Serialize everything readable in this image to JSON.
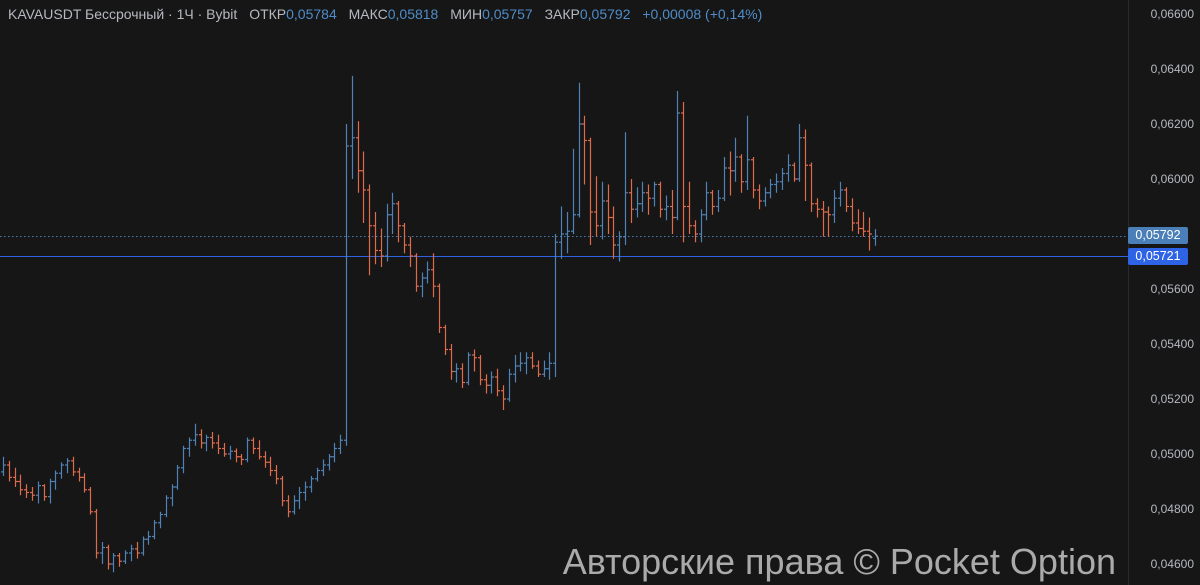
{
  "header": {
    "symbol": "KAVAUSDT Бессрочный · 1Ч · Bybit",
    "open_label": "ОТКР",
    "open": "0,05784",
    "high_label": "МАКС",
    "high": "0,05818",
    "low_label": "МИН",
    "low": "0,05757",
    "close_label": "ЗАКР",
    "close": "0,05792",
    "change": "+0,00008 (+0,14%)"
  },
  "price_tags": {
    "last_price": "0,05792",
    "line_price": "0,05721"
  },
  "watermark": "Авторские права © Pocket Option",
  "colors": {
    "up": "#4f82b5",
    "down": "#e06a4c",
    "background": "#161616",
    "line": "#2f63e6",
    "last_tag": "#4a7fb7"
  },
  "chart_data": {
    "type": "ohlc",
    "title": "KAVAUSDT Бессрочный · 1Ч · Bybit",
    "ylim": [
      0.0456,
      0.0664
    ],
    "y_ticks": [
      "0,06600",
      "0,06400",
      "0,06200",
      "0,06000",
      "0,05600",
      "0,05400",
      "0,05200",
      "0,05000",
      "0,04800",
      "0,04600"
    ],
    "y_tick_values": [
      0.066,
      0.064,
      0.062,
      0.06,
      0.056,
      0.054,
      0.052,
      0.05,
      0.048,
      0.046
    ],
    "horizontal_lines": [
      {
        "price": 0.05792,
        "style": "dotted"
      },
      {
        "price": 0.05721,
        "style": "solid"
      }
    ],
    "bars_ohlc": [
      [
        0.04935,
        0.0499,
        0.0492,
        0.0496
      ],
      [
        0.0496,
        0.04975,
        0.049,
        0.04915
      ],
      [
        0.04915,
        0.0495,
        0.0488,
        0.049
      ],
      [
        0.049,
        0.04925,
        0.0485,
        0.0487
      ],
      [
        0.0487,
        0.0489,
        0.0484,
        0.0486
      ],
      [
        0.0486,
        0.0488,
        0.0483,
        0.0485
      ],
      [
        0.0485,
        0.049,
        0.0482,
        0.04885
      ],
      [
        0.04885,
        0.0489,
        0.0483,
        0.04845
      ],
      [
        0.04845,
        0.0491,
        0.0482,
        0.049
      ],
      [
        0.049,
        0.0494,
        0.0487,
        0.0493
      ],
      [
        0.0493,
        0.0497,
        0.0491,
        0.0496
      ],
      [
        0.0496,
        0.04985,
        0.0493,
        0.04975
      ],
      [
        0.04975,
        0.0499,
        0.0492,
        0.04935
      ],
      [
        0.04935,
        0.0495,
        0.049,
        0.04915
      ],
      [
        0.04915,
        0.0493,
        0.0486,
        0.0487
      ],
      [
        0.0487,
        0.0488,
        0.0478,
        0.0479
      ],
      [
        0.0479,
        0.048,
        0.0462,
        0.0464
      ],
      [
        0.0464,
        0.0468,
        0.046,
        0.0466
      ],
      [
        0.0466,
        0.0467,
        0.0458,
        0.046
      ],
      [
        0.046,
        0.0464,
        0.0457,
        0.0463
      ],
      [
        0.0463,
        0.0464,
        0.0459,
        0.0461
      ],
      [
        0.0461,
        0.0465,
        0.046,
        0.0464
      ],
      [
        0.0464,
        0.0467,
        0.0461,
        0.04655
      ],
      [
        0.04655,
        0.0468,
        0.0462,
        0.0464
      ],
      [
        0.0464,
        0.047,
        0.0463,
        0.0469
      ],
      [
        0.0469,
        0.0472,
        0.0467,
        0.047
      ],
      [
        0.047,
        0.0476,
        0.0469,
        0.0475
      ],
      [
        0.0475,
        0.0479,
        0.0473,
        0.0478
      ],
      [
        0.0478,
        0.0485,
        0.0477,
        0.0484
      ],
      [
        0.0484,
        0.0489,
        0.0481,
        0.0488
      ],
      [
        0.0488,
        0.0496,
        0.0487,
        0.0495
      ],
      [
        0.0495,
        0.0503,
        0.0493,
        0.0502
      ],
      [
        0.0502,
        0.0506,
        0.0499,
        0.0505
      ],
      [
        0.0505,
        0.0511,
        0.0503,
        0.0507
      ],
      [
        0.0507,
        0.0509,
        0.0502,
        0.0504
      ],
      [
        0.0504,
        0.0507,
        0.0501,
        0.0506
      ],
      [
        0.0506,
        0.0508,
        0.0502,
        0.0504
      ],
      [
        0.0504,
        0.0507,
        0.05,
        0.0502
      ],
      [
        0.0502,
        0.0504,
        0.0499,
        0.05
      ],
      [
        0.05,
        0.0503,
        0.0498,
        0.0501
      ],
      [
        0.0501,
        0.0502,
        0.0497,
        0.0499
      ],
      [
        0.0499,
        0.05,
        0.0496,
        0.0498
      ],
      [
        0.0498,
        0.0506,
        0.0497,
        0.0505
      ],
      [
        0.0505,
        0.0506,
        0.05,
        0.0502
      ],
      [
        0.0502,
        0.0505,
        0.0498,
        0.0499
      ],
      [
        0.0499,
        0.0501,
        0.0495,
        0.0497
      ],
      [
        0.0497,
        0.0499,
        0.0492,
        0.0494
      ],
      [
        0.0494,
        0.0496,
        0.0489,
        0.0491
      ],
      [
        0.0491,
        0.0492,
        0.0481,
        0.0483
      ],
      [
        0.0483,
        0.0485,
        0.0477,
        0.0479
      ],
      [
        0.0479,
        0.0485,
        0.0478,
        0.0483
      ],
      [
        0.0483,
        0.0488,
        0.048,
        0.0486
      ],
      [
        0.0486,
        0.049,
        0.0483,
        0.0488
      ],
      [
        0.0488,
        0.0492,
        0.0486,
        0.0491
      ],
      [
        0.0491,
        0.0495,
        0.049,
        0.0494
      ],
      [
        0.0494,
        0.0498,
        0.0492,
        0.0496
      ],
      [
        0.0496,
        0.05,
        0.0494,
        0.0499
      ],
      [
        0.0499,
        0.0504,
        0.0497,
        0.0502
      ],
      [
        0.0502,
        0.0507,
        0.05,
        0.0505
      ],
      [
        0.0505,
        0.062,
        0.0503,
        0.0612
      ],
      [
        0.0612,
        0.06375,
        0.06,
        0.0615
      ],
      [
        0.0615,
        0.0621,
        0.0595,
        0.0603
      ],
      [
        0.0603,
        0.061,
        0.0584,
        0.0596
      ],
      [
        0.0596,
        0.0598,
        0.0565,
        0.0583
      ],
      [
        0.0583,
        0.0588,
        0.0569,
        0.0574
      ],
      [
        0.0574,
        0.0582,
        0.0568,
        0.0572
      ],
      [
        0.0572,
        0.0591,
        0.057,
        0.0587
      ],
      [
        0.0587,
        0.0595,
        0.058,
        0.0591
      ],
      [
        0.0591,
        0.0592,
        0.0577,
        0.0583
      ],
      [
        0.0583,
        0.0584,
        0.0573,
        0.0576
      ],
      [
        0.0576,
        0.0579,
        0.0568,
        0.0572
      ],
      [
        0.0572,
        0.0573,
        0.0559,
        0.0561
      ],
      [
        0.0561,
        0.0566,
        0.0557,
        0.0564
      ],
      [
        0.0564,
        0.057,
        0.0562,
        0.0567
      ],
      [
        0.0567,
        0.0573,
        0.0557,
        0.0561
      ],
      [
        0.0561,
        0.0562,
        0.0544,
        0.0546
      ],
      [
        0.0546,
        0.0547,
        0.0536,
        0.0538
      ],
      [
        0.0538,
        0.054,
        0.0527,
        0.053
      ],
      [
        0.053,
        0.0533,
        0.0526,
        0.0531
      ],
      [
        0.0531,
        0.0533,
        0.0524,
        0.0526
      ],
      [
        0.0526,
        0.0537,
        0.0525,
        0.0536
      ],
      [
        0.0536,
        0.0538,
        0.053,
        0.0535
      ],
      [
        0.0535,
        0.0536,
        0.0525,
        0.0527
      ],
      [
        0.0527,
        0.0529,
        0.0522,
        0.0525
      ],
      [
        0.0525,
        0.053,
        0.0522,
        0.0528
      ],
      [
        0.0528,
        0.0531,
        0.0521,
        0.0523
      ],
      [
        0.0523,
        0.0525,
        0.0516,
        0.052
      ],
      [
        0.052,
        0.0531,
        0.0519,
        0.0529
      ],
      [
        0.0529,
        0.0536,
        0.0526,
        0.0532
      ],
      [
        0.0532,
        0.0537,
        0.053,
        0.0533
      ],
      [
        0.0533,
        0.0537,
        0.0529,
        0.0535
      ],
      [
        0.0535,
        0.0537,
        0.0531,
        0.0532
      ],
      [
        0.0532,
        0.0534,
        0.0528,
        0.0529
      ],
      [
        0.0529,
        0.0534,
        0.0528,
        0.0531
      ],
      [
        0.0531,
        0.0537,
        0.0527,
        0.0533
      ],
      [
        0.0533,
        0.058,
        0.0528,
        0.0577
      ],
      [
        0.0577,
        0.059,
        0.0571,
        0.058
      ],
      [
        0.058,
        0.0588,
        0.0573,
        0.0581
      ],
      [
        0.0581,
        0.0611,
        0.058,
        0.0587
      ],
      [
        0.0587,
        0.0635,
        0.0586,
        0.062
      ],
      [
        0.062,
        0.0623,
        0.0598,
        0.0614
      ],
      [
        0.0614,
        0.0615,
        0.0576,
        0.0588
      ],
      [
        0.0588,
        0.0601,
        0.0579,
        0.0583
      ],
      [
        0.0583,
        0.0599,
        0.0578,
        0.0592
      ],
      [
        0.0592,
        0.0598,
        0.058,
        0.0586
      ],
      [
        0.0586,
        0.059,
        0.0571,
        0.0576
      ],
      [
        0.0576,
        0.0581,
        0.057,
        0.0579
      ],
      [
        0.0579,
        0.0617,
        0.0576,
        0.0595
      ],
      [
        0.0595,
        0.06,
        0.0584,
        0.0589
      ],
      [
        0.0589,
        0.0597,
        0.0586,
        0.0591
      ],
      [
        0.0591,
        0.0599,
        0.0588,
        0.0595
      ],
      [
        0.0595,
        0.0598,
        0.0587,
        0.0593
      ],
      [
        0.0593,
        0.0599,
        0.059,
        0.0598
      ],
      [
        0.0598,
        0.0599,
        0.0586,
        0.0589
      ],
      [
        0.0589,
        0.0594,
        0.0585,
        0.059
      ],
      [
        0.059,
        0.0596,
        0.058,
        0.0586
      ],
      [
        0.0586,
        0.0632,
        0.0585,
        0.0624
      ],
      [
        0.0624,
        0.0628,
        0.0577,
        0.059
      ],
      [
        0.059,
        0.0599,
        0.058,
        0.0583
      ],
      [
        0.0583,
        0.0585,
        0.0577,
        0.058
      ],
      [
        0.058,
        0.0589,
        0.0577,
        0.0587
      ],
      [
        0.0587,
        0.0599,
        0.0585,
        0.0595
      ],
      [
        0.0595,
        0.0596,
        0.0587,
        0.059
      ],
      [
        0.059,
        0.0596,
        0.0588,
        0.0593
      ],
      [
        0.0593,
        0.0608,
        0.0592,
        0.0604
      ],
      [
        0.0604,
        0.061,
        0.0594,
        0.0603
      ],
      [
        0.0603,
        0.0615,
        0.0599,
        0.0608
      ],
      [
        0.0608,
        0.0609,
        0.0595,
        0.0599
      ],
      [
        0.0599,
        0.0623,
        0.0596,
        0.0607
      ],
      [
        0.0607,
        0.0608,
        0.0593,
        0.0596
      ],
      [
        0.0596,
        0.0598,
        0.0589,
        0.0592
      ],
      [
        0.0592,
        0.0597,
        0.059,
        0.0595
      ],
      [
        0.0595,
        0.06,
        0.0593,
        0.0598
      ],
      [
        0.0598,
        0.0602,
        0.0595,
        0.0599
      ],
      [
        0.0599,
        0.0604,
        0.0596,
        0.0602
      ],
      [
        0.0602,
        0.0609,
        0.0599,
        0.0605
      ],
      [
        0.0605,
        0.0606,
        0.0599,
        0.06
      ],
      [
        0.06,
        0.062,
        0.0599,
        0.0615
      ],
      [
        0.0615,
        0.0618,
        0.0592,
        0.0605
      ],
      [
        0.0605,
        0.0606,
        0.0588,
        0.0591
      ],
      [
        0.0591,
        0.0593,
        0.0586,
        0.0589
      ],
      [
        0.0589,
        0.0592,
        0.0579,
        0.0588
      ],
      [
        0.0588,
        0.059,
        0.0579,
        0.0587
      ],
      [
        0.0587,
        0.0596,
        0.0584,
        0.0593
      ],
      [
        0.0593,
        0.0599,
        0.059,
        0.0596
      ],
      [
        0.0596,
        0.0597,
        0.0588,
        0.059
      ],
      [
        0.059,
        0.0593,
        0.0581,
        0.0584
      ],
      [
        0.0584,
        0.0589,
        0.058,
        0.0582
      ],
      [
        0.0582,
        0.0588,
        0.0579,
        0.0581
      ],
      [
        0.0581,
        0.0586,
        0.0574,
        0.058
      ],
      [
        0.05784,
        0.05818,
        0.05757,
        0.05792
      ]
    ]
  }
}
